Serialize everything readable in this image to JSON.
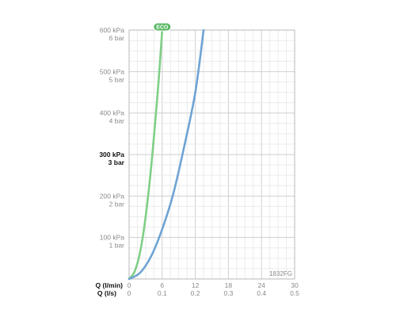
{
  "chart_data": {
    "type": "line",
    "x_primary": {
      "label": "Q (l/min)",
      "ticks": [
        0,
        6,
        12,
        18,
        24,
        30
      ],
      "range": [
        0,
        30
      ]
    },
    "x_secondary": {
      "label": "Q (l/s)",
      "ticks": [
        "0",
        "0.1",
        "0.2",
        "0.3",
        "0.4",
        "0.5"
      ]
    },
    "y": {
      "range_kpa": [
        0,
        600
      ],
      "ticks": [
        {
          "value": 100,
          "kpa": "100 kPa",
          "bar": "1 bar",
          "bold": false
        },
        {
          "value": 200,
          "kpa": "200 kPa",
          "bar": "2 bar",
          "bold": false
        },
        {
          "value": 300,
          "kpa": "300 kPa",
          "bar": "3 bar",
          "bold": true
        },
        {
          "value": 400,
          "kpa": "400 kPa",
          "bar": "4 bar",
          "bold": false
        },
        {
          "value": 500,
          "kpa": "500 kPa",
          "bar": "5 bar",
          "bold": false
        },
        {
          "value": 600,
          "kpa": "600 kPa",
          "bar": "6 bar",
          "bold": false
        }
      ]
    },
    "grid": true,
    "series": [
      {
        "name": "ECO",
        "color": "#7fcf86",
        "x": [
          0,
          1,
          2,
          3,
          4,
          5,
          5.5,
          6
        ],
        "y": [
          0,
          18,
          65,
          150,
          270,
          420,
          505,
          600
        ]
      },
      {
        "color": "#6ea3d4",
        "x": [
          0,
          2,
          4,
          6,
          8,
          10,
          12,
          13.5
        ],
        "y": [
          0,
          15,
          55,
          120,
          205,
          320,
          450,
          600
        ]
      }
    ],
    "annotations": {
      "eco_badge": "ECO",
      "product_code": "1832FG"
    }
  }
}
